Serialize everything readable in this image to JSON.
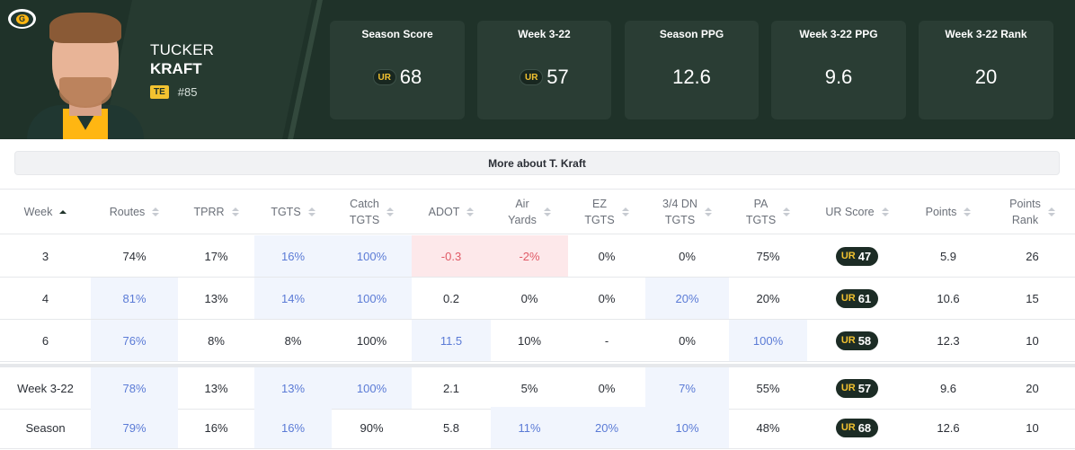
{
  "header": {
    "team_logo": "G",
    "player_first": "TUCKER",
    "player_last": "KRAFT",
    "position": "TE",
    "number": "#85",
    "stats": [
      {
        "label": "Season Score",
        "value": "68",
        "icon": "UR"
      },
      {
        "label": "Week 3-22",
        "value": "57",
        "icon": "UR"
      },
      {
        "label": "Season PPG",
        "value": "12.6",
        "icon": ""
      },
      {
        "label": "Week 3-22 PPG",
        "value": "9.6",
        "icon": ""
      },
      {
        "label": "Week 3-22 Rank",
        "value": "20",
        "icon": ""
      }
    ]
  },
  "more_button": "More about T. Kraft",
  "ur_mark": "UR",
  "columns": [
    {
      "l1": "Week",
      "l2": ""
    },
    {
      "l1": "Routes",
      "l2": ""
    },
    {
      "l1": "TPRR",
      "l2": ""
    },
    {
      "l1": "TGTS",
      "l2": ""
    },
    {
      "l1": "Catch",
      "l2": "TGTS"
    },
    {
      "l1": "ADOT",
      "l2": ""
    },
    {
      "l1": "Air",
      "l2": "Yards"
    },
    {
      "l1": "EZ",
      "l2": "TGTS"
    },
    {
      "l1": "3/4 DN",
      "l2": "TGTS"
    },
    {
      "l1": "PA",
      "l2": "TGTS"
    },
    {
      "l1": "UR Score",
      "l2": ""
    },
    {
      "l1": "Points",
      "l2": ""
    },
    {
      "l1": "Points",
      "l2": "Rank"
    }
  ],
  "rows": [
    {
      "cells": [
        "3",
        "74%",
        "17%",
        "16%",
        "100%",
        "-0.3",
        "-2%",
        "0%",
        "0%",
        "75%",
        "47",
        "5.9",
        "26"
      ]
    },
    {
      "cells": [
        "4",
        "81%",
        "13%",
        "14%",
        "100%",
        "0.2",
        "0%",
        "0%",
        "20%",
        "20%",
        "61",
        "10.6",
        "15"
      ]
    },
    {
      "cells": [
        "6",
        "76%",
        "8%",
        "8%",
        "100%",
        "11.5",
        "10%",
        "-",
        "0%",
        "100%",
        "58",
        "12.3",
        "10"
      ]
    },
    {
      "cells": [
        "Week 3-22",
        "78%",
        "13%",
        "13%",
        "100%",
        "2.1",
        "5%",
        "0%",
        "7%",
        "55%",
        "57",
        "9.6",
        "20"
      ]
    },
    {
      "cells": [
        "Season",
        "79%",
        "16%",
        "16%",
        "90%",
        "5.8",
        "11%",
        "20%",
        "10%",
        "48%",
        "68",
        "12.6",
        "10"
      ]
    }
  ],
  "highlights": [
    [
      "",
      "",
      "",
      "blue",
      "blue",
      "red",
      "red",
      "",
      "",
      "",
      "",
      "",
      ""
    ],
    [
      "",
      "blue",
      "",
      "blue",
      "blue",
      "",
      "",
      "",
      "blue",
      "",
      "",
      "",
      ""
    ],
    [
      "",
      "blue",
      "",
      "",
      "",
      "blue",
      "",
      "",
      "",
      "blue",
      "",
      "",
      ""
    ],
    [
      "",
      "blue",
      "",
      "blue",
      "blue",
      "",
      "",
      "",
      "blue",
      "",
      "",
      "",
      ""
    ],
    [
      "",
      "blue",
      "",
      "blue",
      "",
      "",
      "blue",
      "blue",
      "blue",
      "",
      "",
      "",
      ""
    ]
  ],
  "colors": {
    "header_bg": "#1f3229",
    "accent": "#f2c230",
    "blue_text": "#5b7bd6",
    "red_text": "#e05a66"
  }
}
